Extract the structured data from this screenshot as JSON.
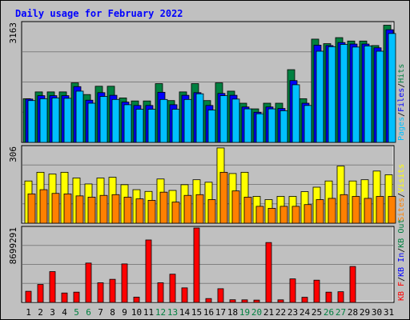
{
  "chart_data": {
    "type": "bar",
    "title": "Daily usage for February 2022",
    "days": [
      "1",
      "2",
      "3",
      "4",
      "5",
      "6",
      "7",
      "8",
      "9",
      "10",
      "11",
      "12",
      "13",
      "14",
      "15",
      "16",
      "17",
      "18",
      "19",
      "20",
      "21",
      "22",
      "23",
      "24",
      "25",
      "26",
      "27",
      "28",
      "29",
      "30",
      "31"
    ],
    "weekend_days": [
      "5",
      "6",
      "12",
      "13",
      "19",
      "20",
      "26",
      "27"
    ],
    "colors": {
      "hits": "#008040",
      "files": "#0000ff",
      "pages": "#00c0ff",
      "visits": "#ffff00",
      "sites": "#ff8000",
      "kb_in": "#008040",
      "kb_out": "#0000ff",
      "kb_f": "#ff0000",
      "title_text": "#0000ff",
      "weekend_label": "#008040",
      "background": "#c0c0c0"
    },
    "panels": [
      {
        "id": "hits-files-pages",
        "max_label": "3163",
        "ylim": [
          0,
          3163
        ],
        "legend": [
          {
            "label": "Pages",
            "color": "#00c0ff"
          },
          {
            "label": "/",
            "color": "#000000"
          },
          {
            "label": "Files",
            "color": "#0000ff"
          },
          {
            "label": "/",
            "color": "#000000"
          },
          {
            "label": "Hits",
            "color": "#008040"
          }
        ],
        "series": [
          {
            "name": "Hits",
            "color": "#008040",
            "values": [
              1160,
              1340,
              1340,
              1340,
              1580,
              1270,
              1490,
              1490,
              1180,
              1100,
              1100,
              1560,
              1110,
              1340,
              1560,
              1110,
              1580,
              1360,
              1040,
              890,
              1040,
              1040,
              1930,
              1160,
              2740,
              2620,
              2780,
              2690,
              2690,
              2570,
              3110
            ]
          },
          {
            "name": "Files",
            "color": "#0000ff",
            "values": [
              1150,
              1240,
              1240,
              1240,
              1480,
              1120,
              1320,
              1250,
              1070,
              980,
              980,
              1330,
              1000,
              1250,
              1320,
              980,
              1300,
              1250,
              940,
              800,
              940,
              900,
              1640,
              1040,
              2580,
              2570,
              2650,
              2610,
              2610,
              2510,
              2990
            ]
          },
          {
            "name": "Pages",
            "color": "#00c0ff",
            "values": [
              1110,
              1160,
              1180,
              1170,
              1360,
              1040,
              1220,
              1140,
              1000,
              880,
              880,
              1140,
              880,
              1140,
              1290,
              860,
              1240,
              1150,
              890,
              760,
              890,
              840,
              1530,
              980,
              2420,
              2540,
              2600,
              2530,
              2560,
              2420,
              2890
            ]
          }
        ]
      },
      {
        "id": "visits-sites",
        "max_label": "306",
        "ylim": [
          0,
          306
        ],
        "legend": [
          {
            "label": "Sites",
            "color": "#ff8000"
          },
          {
            "label": "/",
            "color": "#000000"
          },
          {
            "label": "Visits",
            "color": "#ffff00"
          }
        ],
        "series": [
          {
            "name": "Visits",
            "color": "#ffff00",
            "values": [
              170,
              205,
              198,
              205,
              182,
              158,
              182,
              185,
              155,
              135,
              128,
              178,
              132,
              155,
              175,
              165,
              303,
              200,
              205,
              108,
              95,
              108,
              108,
              127,
              145,
              170,
              230,
              170,
              175,
              210,
              195
            ]
          },
          {
            "name": "Sites",
            "color": "#ff8000",
            "values": [
              118,
              135,
              120,
              118,
              110,
              105,
              112,
              115,
              105,
              98,
              92,
              125,
              85,
              112,
              115,
              95,
              205,
              130,
              105,
              68,
              60,
              68,
              68,
              75,
              95,
              100,
              115,
              108,
              100,
              108,
              108
            ]
          }
        ]
      },
      {
        "id": "kbytes",
        "max_label": "8699291",
        "ylim": [
          0,
          8699291
        ],
        "legend": [
          {
            "label": "KB F",
            "color": "#ff0000"
          },
          {
            "label": "/",
            "color": "#000000"
          },
          {
            "label": "KB In",
            "color": "#0000ff"
          },
          {
            "label": "/",
            "color": "#000000"
          },
          {
            "label": "KB Out",
            "color": "#008040"
          }
        ],
        "series": [
          {
            "name": "KB F",
            "color": "#ff0000",
            "values": [
              1300000,
              2100000,
              3600000,
              1100000,
              1200000,
              4600000,
              2300000,
              2700000,
              4500000,
              620000,
              7300000,
              2300000,
              3300000,
              1700000,
              8699291,
              450000,
              1600000,
              310000,
              300000,
              270000,
              7000000,
              300000,
              2750000,
              600000,
              2600000,
              1200000,
              1250000,
              4200000,
              0,
              0,
              0
            ]
          }
        ]
      }
    ]
  }
}
